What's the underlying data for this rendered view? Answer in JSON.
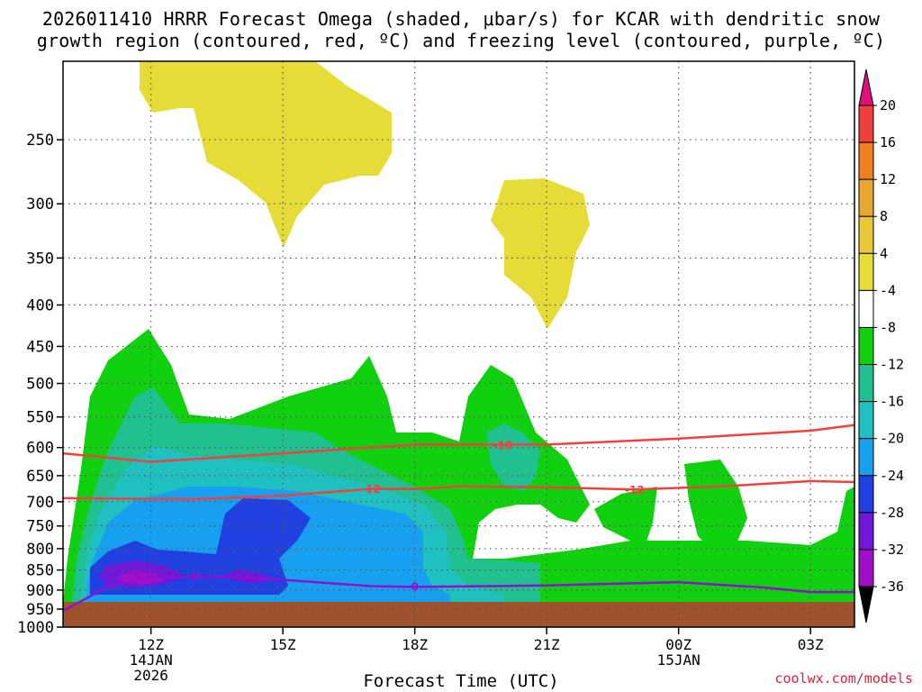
{
  "chart_data": {
    "type": "contour",
    "title_line1": "2026011410 HRRR Forecast Omega (shaded, μbar/s) for KCAR with dendritic snow",
    "title_line2": "growth region (contoured, red, ºC) and freezing level (contoured, purple, ºC)",
    "xlabel": "Forecast Time (UTC)",
    "ylabel": "",
    "y_axis": {
      "scale": "log-pressure",
      "ticks": [
        250,
        300,
        350,
        400,
        450,
        500,
        550,
        600,
        650,
        700,
        750,
        800,
        850,
        900,
        950,
        1000
      ],
      "range": [
        200,
        1000
      ]
    },
    "x_axis": {
      "ticks": [
        {
          "hour": 12,
          "label": "12Z",
          "sub1": "14JAN",
          "sub2": "2026"
        },
        {
          "hour": 15,
          "label": "15Z",
          "sub1": "",
          "sub2": ""
        },
        {
          "hour": 18,
          "label": "18Z",
          "sub1": "",
          "sub2": ""
        },
        {
          "hour": 21,
          "label": "21Z",
          "sub1": "",
          "sub2": ""
        },
        {
          "hour": 24,
          "label": "00Z",
          "sub1": "15JAN",
          "sub2": ""
        },
        {
          "hour": 27,
          "label": "03Z",
          "sub1": "",
          "sub2": ""
        }
      ],
      "range": [
        10,
        28
      ]
    },
    "grid": true,
    "colorbar": {
      "levels": [
        20,
        16,
        12,
        8,
        4,
        -4,
        -8,
        -12,
        -16,
        -20,
        -24,
        -28,
        -32,
        -36
      ],
      "colors": [
        "#ef4040",
        "#f08020",
        "#e8a830",
        "#e8c838",
        "#e8dc38",
        "#ffffff",
        "#10d010",
        "#20c090",
        "#20c0c0",
        "#18a0f0",
        "#2040e0",
        "#7018d8",
        "#a010c8",
        "#a8a8a8"
      ],
      "top_arrow": "#e0107a",
      "bottom_arrow": "#000000"
    },
    "contour_lines": [
      {
        "name": "-18",
        "color": "#f04040",
        "points": [
          [
            10,
            610
          ],
          [
            12,
            625
          ],
          [
            15,
            610
          ],
          [
            18,
            595
          ],
          [
            21,
            595
          ],
          [
            24,
            585
          ],
          [
            27,
            572
          ],
          [
            28,
            563
          ]
        ]
      },
      {
        "name": "-12",
        "color": "#f04040",
        "points": [
          [
            10,
            693
          ],
          [
            13,
            695
          ],
          [
            15,
            688
          ],
          [
            17,
            675
          ],
          [
            18,
            675
          ],
          [
            19,
            670
          ],
          [
            21,
            672
          ],
          [
            23,
            676
          ],
          [
            25,
            670
          ],
          [
            27,
            660
          ],
          [
            28,
            662
          ]
        ]
      },
      {
        "name": "0",
        "color": "#9010d0",
        "points": [
          [
            10,
            955
          ],
          [
            11,
            893
          ],
          [
            12,
            866
          ],
          [
            13,
            866
          ],
          [
            14,
            868
          ],
          [
            15,
            874
          ],
          [
            17,
            890
          ],
          [
            18,
            892
          ],
          [
            21,
            888
          ],
          [
            24,
            880
          ],
          [
            26,
            894
          ],
          [
            27,
            905
          ],
          [
            28,
            905
          ]
        ]
      }
    ],
    "contour_labels": [
      {
        "text": "-18",
        "x": 20,
        "p": 597,
        "color": "#f04040"
      },
      {
        "text": "-12",
        "x": 17,
        "p": 676,
        "color": "#f04040"
      },
      {
        "text": "-12",
        "x": 23,
        "p": 677,
        "color": "#f04040"
      },
      {
        "text": "0",
        "x": 13,
        "p": 866,
        "color": "#9010d0"
      },
      {
        "text": "0",
        "x": 18,
        "p": 892,
        "color": "#9010d0"
      }
    ]
  },
  "credit": "coolwx.com/models"
}
